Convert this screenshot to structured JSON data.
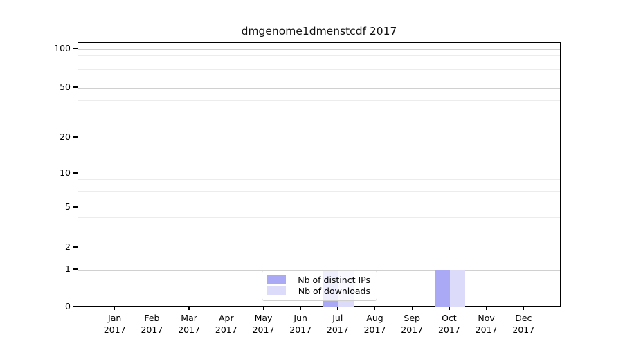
{
  "chart_data": {
    "type": "bar",
    "title": "dmgenome1dmenstcdf 2017",
    "categories": [
      "Jan",
      "Feb",
      "Mar",
      "Apr",
      "May",
      "Jun",
      "Jul",
      "Aug",
      "Sep",
      "Oct",
      "Nov",
      "Dec"
    ],
    "year_label": "2017",
    "series": [
      {
        "name": "Nb of distinct IPs",
        "color": "#a9a9f5",
        "values": [
          0,
          0,
          0,
          0,
          0,
          0,
          1,
          0,
          0,
          1,
          0,
          0
        ]
      },
      {
        "name": "Nb of downloads",
        "color": "#dcdcfa",
        "values": [
          0,
          0,
          0,
          0,
          0,
          0,
          1,
          0,
          0,
          1,
          0,
          0
        ]
      }
    ],
    "yticks": [
      0,
      1,
      2,
      5,
      10,
      20,
      50,
      100
    ],
    "minor_yticks": [
      3,
      4,
      6,
      7,
      8,
      9,
      30,
      40,
      60,
      70,
      80,
      90
    ],
    "ylim": [
      0,
      100
    ],
    "xlabel": "",
    "ylabel": "",
    "yscale": "log-like with linear segment to 0",
    "grid": "horizontal",
    "legend_position": "bottom-center"
  },
  "colors": {
    "major_grid": "#d0d0d0",
    "minor_grid": "#ececec",
    "axis": "#000000",
    "legend_border": "#d0d0d0",
    "background": "#ffffff"
  }
}
